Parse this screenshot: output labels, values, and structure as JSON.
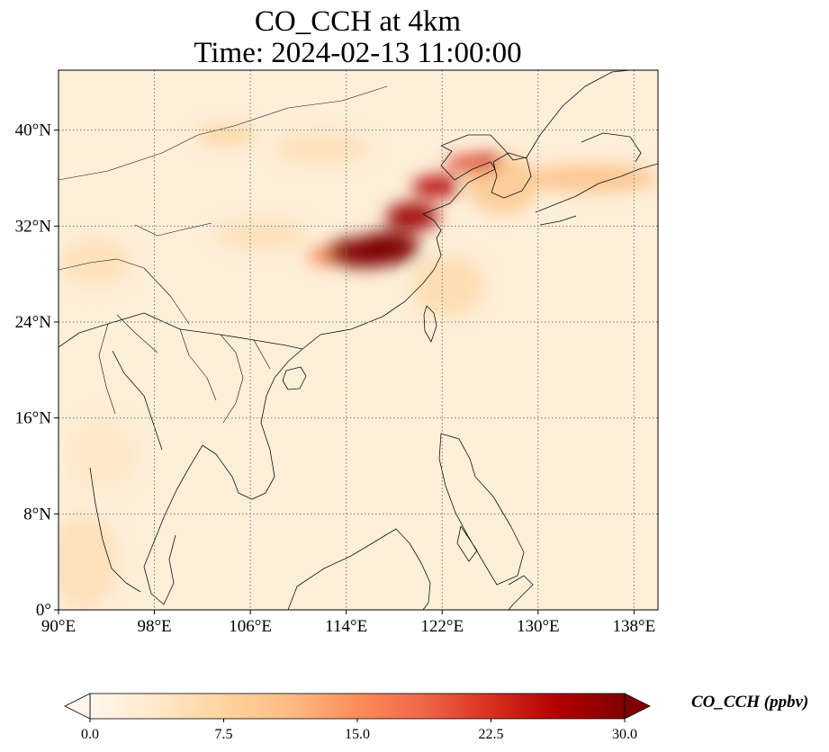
{
  "figure": {
    "title_line1": "CO_CCH at 4km",
    "title_line2": "Time: 2024-02-13 11:00:00"
  },
  "map": {
    "extent": {
      "lon": [
        90,
        140
      ],
      "lat": [
        0,
        45
      ]
    },
    "projection": "PlateCarree",
    "gridlines": {
      "style": "dotted",
      "color": "#777777"
    },
    "lon_ticks": [
      {
        "value": 90,
        "label": "90°E"
      },
      {
        "value": 98,
        "label": "98°E"
      },
      {
        "value": 106,
        "label": "106°E"
      },
      {
        "value": 114,
        "label": "114°E"
      },
      {
        "value": 122,
        "label": "122°E"
      },
      {
        "value": 130,
        "label": "130°E"
      },
      {
        "value": 138,
        "label": "138°E"
      }
    ],
    "lat_ticks": [
      {
        "value": 0,
        "label": "0°"
      },
      {
        "value": 8,
        "label": "8°N"
      },
      {
        "value": 16,
        "label": "16°N"
      },
      {
        "value": 24,
        "label": "24°N"
      },
      {
        "value": 32,
        "label": "32°N"
      },
      {
        "value": 40,
        "label": "40°N"
      }
    ],
    "background_value": 2,
    "plume_blobs": [
      {
        "lon": 115.5,
        "lat": 29.8,
        "rlon": 3.2,
        "rlat": 1.3,
        "value": 30
      },
      {
        "lon": 117.5,
        "lat": 30.2,
        "rlon": 2.6,
        "rlat": 1.4,
        "value": 30
      },
      {
        "lon": 119.5,
        "lat": 32.8,
        "rlon": 2.2,
        "rlat": 1.2,
        "value": 28
      },
      {
        "lon": 121.5,
        "lat": 35.3,
        "rlon": 2.0,
        "rlat": 0.9,
        "value": 26
      },
      {
        "lon": 124.5,
        "lat": 37.2,
        "rlon": 2.2,
        "rlat": 0.7,
        "value": 22
      },
      {
        "lon": 126.0,
        "lat": 37.6,
        "rlon": 1.0,
        "rlat": 0.5,
        "value": 24
      },
      {
        "lon": 112.5,
        "lat": 29.5,
        "rlon": 1.8,
        "rlat": 0.8,
        "value": 15
      },
      {
        "lon": 127.0,
        "lat": 35.5,
        "rlon": 3.0,
        "rlat": 2.5,
        "value": 9
      },
      {
        "lon": 134.5,
        "lat": 36.0,
        "rlon": 5.5,
        "rlat": 1.2,
        "value": 10
      },
      {
        "lon": 104.0,
        "lat": 39.6,
        "rlon": 2.5,
        "rlat": 0.9,
        "value": 7
      },
      {
        "lon": 112.0,
        "lat": 38.5,
        "rlon": 4.0,
        "rlat": 1.4,
        "value": 5
      },
      {
        "lon": 107.0,
        "lat": 31.3,
        "rlon": 4.0,
        "rlat": 1.3,
        "value": 5
      },
      {
        "lon": 122.5,
        "lat": 27.0,
        "rlon": 3.0,
        "rlat": 2.5,
        "value": 6
      },
      {
        "lon": 93.0,
        "lat": 29.0,
        "rlon": 3.0,
        "rlat": 2.0,
        "value": 5
      },
      {
        "lon": 92.0,
        "lat": 4.0,
        "rlon": 3.0,
        "rlat": 4.0,
        "value": 5
      },
      {
        "lon": 93.5,
        "lat": 13.0,
        "rlon": 3.0,
        "rlat": 3.0,
        "value": 4
      }
    ]
  },
  "colorbar": {
    "label": "CO_CCH (ppbv)",
    "range": [
      0.0,
      30.0
    ],
    "extend": "both",
    "colormap": "OrRd",
    "colors": [
      "#fff7ec",
      "#fee8c8",
      "#fdd49e",
      "#fdbb84",
      "#fc8d59",
      "#ef6548",
      "#d7301f",
      "#b30000",
      "#7f0000"
    ],
    "ticks": [
      {
        "value": 0.0,
        "label": "0.0"
      },
      {
        "value": 7.5,
        "label": "7.5"
      },
      {
        "value": 15.0,
        "label": "15.0"
      },
      {
        "value": 22.5,
        "label": "22.5"
      },
      {
        "value": 30.0,
        "label": "30.0"
      }
    ]
  }
}
